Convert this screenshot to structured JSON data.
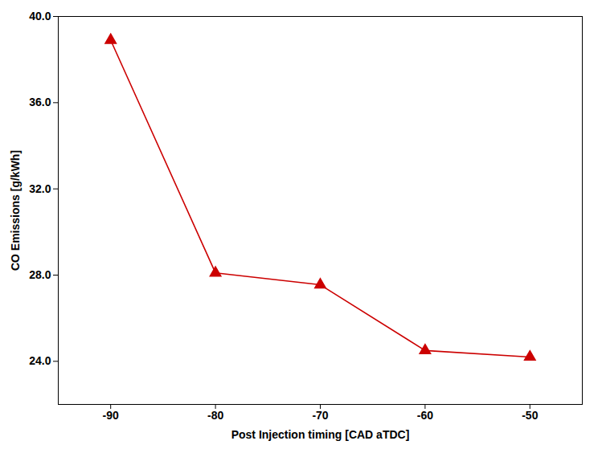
{
  "chart_data": {
    "type": "line",
    "x": [
      -90,
      -80,
      -70,
      -60,
      -50
    ],
    "values": [
      38.9,
      28.1,
      27.55,
      24.5,
      24.2
    ],
    "color": "#cc0000",
    "marker": "triangle",
    "xlabel": "Post Injection timing [CAD aTDC]",
    "ylabel": "CO Emissions [g/kWh]",
    "xlim": [
      -95,
      -45
    ],
    "ylim": [
      22.0,
      40.0
    ],
    "xticks": [
      -90,
      -80,
      -70,
      -60,
      -50
    ],
    "yticks": [
      {
        "value": 24.0,
        "label": "24.0"
      },
      {
        "value": 28.0,
        "label": "28.0"
      },
      {
        "value": 32.0,
        "label": "32.0"
      },
      {
        "value": 36.0,
        "label": "36.0"
      },
      {
        "value": 40.0,
        "label": "40.0"
      }
    ],
    "grid": false
  }
}
